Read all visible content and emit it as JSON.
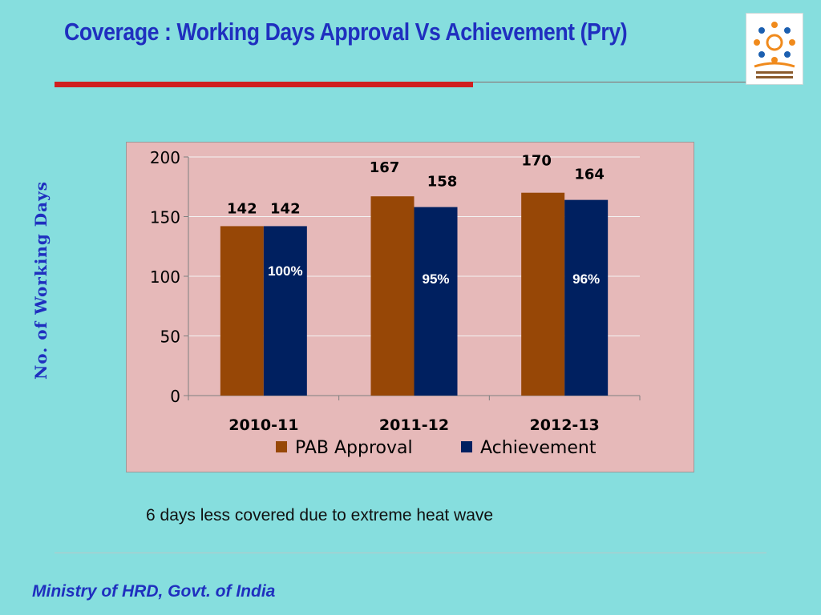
{
  "slide": {
    "title": "Coverage : Working Days Approval Vs Achievement (Pry)",
    "note": "6 days less covered due to extreme heat wave",
    "footer": "Ministry of HRD, Govt. of India",
    "logo_icon": "mid-day-meal-scheme-logo"
  },
  "colors": {
    "background": "#86dede",
    "title": "#1f2fbf",
    "accent_rule": "#d01f1f",
    "plot_background": "#e6b9b9"
  },
  "chart_data": {
    "type": "bar",
    "title": "",
    "ylabel": "No. of Working Days",
    "xlabel": "",
    "ylim": [
      0,
      200
    ],
    "yticks": [
      0,
      50,
      100,
      150,
      200
    ],
    "categories": [
      "2010-11",
      "2011-12",
      "2012-13"
    ],
    "series": [
      {
        "name": "PAB Approval",
        "values": [
          142,
          167,
          170
        ],
        "color": "#974706"
      },
      {
        "name": "Achievement",
        "values": [
          142,
          158,
          164
        ],
        "color": "#002060"
      }
    ],
    "value_labels": {
      "PAB Approval": [
        "142",
        "167",
        "170"
      ],
      "Achievement": [
        "142",
        "158",
        "164"
      ]
    },
    "percent_labels": [
      "100%",
      "95%",
      "96%"
    ],
    "grid": true,
    "legend": "bottom"
  }
}
